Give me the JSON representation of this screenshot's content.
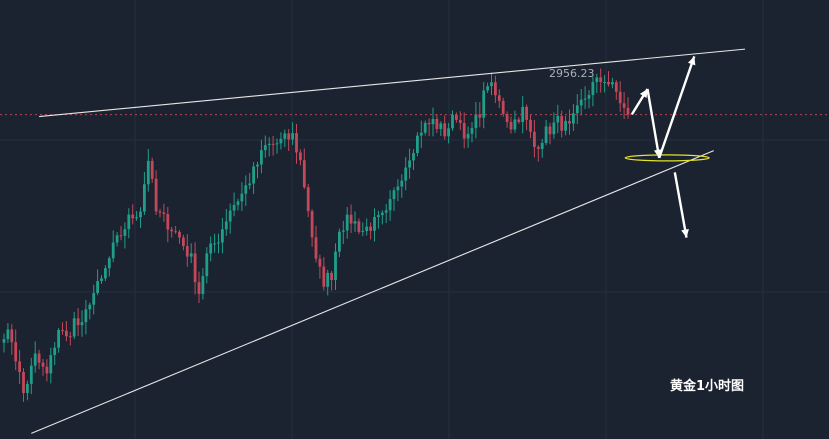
{
  "colors": {
    "background": "#1b2230",
    "grid": "#263041",
    "up": "#1f9e89",
    "down": "#c2485a",
    "trendline": "#e6e6e6",
    "arrow": "#ffffff",
    "target_ellipse": "#e3e32a",
    "price_line": "#b8424f",
    "high_label": "#a9b0bd"
  },
  "caption": "黄金1小时图",
  "chart_data": {
    "type": "candlestick",
    "title": "",
    "xlabel": "",
    "ylabel": "",
    "grid": true,
    "high_label": "2956.23",
    "ylim": [
      2855,
      2975
    ],
    "anchors": [
      [
        0,
        2884
      ],
      [
        2,
        2882
      ],
      [
        4,
        2872
      ],
      [
        5,
        2867
      ],
      [
        8,
        2877
      ],
      [
        11,
        2872
      ],
      [
        14,
        2885
      ],
      [
        16,
        2882
      ],
      [
        18,
        2887
      ],
      [
        20,
        2885
      ],
      [
        22,
        2893
      ],
      [
        25,
        2898
      ],
      [
        28,
        2907
      ],
      [
        32,
        2915
      ],
      [
        35,
        2918
      ],
      [
        37,
        2932
      ],
      [
        39,
        2917
      ],
      [
        42,
        2914
      ],
      [
        45,
        2910
      ],
      [
        48,
        2904
      ],
      [
        50,
        2895
      ],
      [
        52,
        2905
      ],
      [
        55,
        2910
      ],
      [
        58,
        2918
      ],
      [
        61,
        2922
      ],
      [
        64,
        2928
      ],
      [
        67,
        2935
      ],
      [
        70,
        2936
      ],
      [
        74,
        2938
      ],
      [
        76,
        2931
      ],
      [
        78,
        2918
      ],
      [
        80,
        2903
      ],
      [
        82,
        2898
      ],
      [
        84,
        2900
      ],
      [
        86,
        2913
      ],
      [
        89,
        2915
      ],
      [
        92,
        2912
      ],
      [
        95,
        2914
      ],
      [
        98,
        2916
      ],
      [
        101,
        2925
      ],
      [
        104,
        2933
      ],
      [
        107,
        2940
      ],
      [
        110,
        2942
      ],
      [
        113,
        2939
      ],
      [
        116,
        2944
      ],
      [
        119,
        2937
      ],
      [
        122,
        2945
      ],
      [
        124,
        2953
      ],
      [
        127,
        2947
      ],
      [
        130,
        2941
      ],
      [
        133,
        2945
      ],
      [
        136,
        2935
      ],
      [
        139,
        2939
      ],
      [
        142,
        2942
      ],
      [
        145,
        2940
      ],
      [
        148,
        2947
      ],
      [
        151,
        2952
      ],
      [
        154,
        2954
      ],
      [
        157,
        2950
      ],
      [
        160,
        2943
      ]
    ],
    "last_price_dashed_line": true,
    "annotations": {
      "resistance_line": [
        [
          0,
          2942
        ],
        [
          190,
          2962
        ]
      ],
      "support_line": [
        [
          0,
          2856
        ],
        [
          182,
          2934
        ]
      ],
      "arrows": [
        {
          "from": [
            161,
            2944
          ],
          "to": [
            165,
            2951
          ]
        },
        {
          "from": [
            165,
            2951
          ],
          "to": [
            168,
            2932
          ]
        },
        {
          "from": [
            168,
            2932
          ],
          "to": [
            177,
            2960
          ]
        },
        {
          "from": [
            172,
            2928
          ],
          "to": [
            175,
            2910
          ]
        }
      ],
      "ellipse_center": [
        168,
        2932
      ]
    }
  }
}
